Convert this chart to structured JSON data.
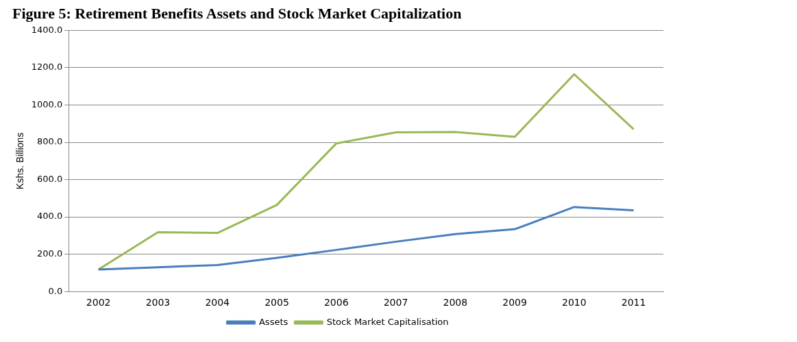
{
  "chart_data": {
    "type": "line",
    "title": "Figure 5: Retirement Benefits Assets and Stock Market Capitalization",
    "ylabel": "Kshs. Billions",
    "categories": [
      "2002",
      "2003",
      "2004",
      "2005",
      "2006",
      "2007",
      "2008",
      "2009",
      "2010",
      "2011"
    ],
    "series": [
      {
        "name": "Assets",
        "color": "#4a7ebb",
        "values": [
          118,
          130,
          142,
          180,
          223,
          267,
          308,
          334,
          453,
          435
        ]
      },
      {
        "name": "Stock Market Capitalisation",
        "color": "#98b954",
        "values": [
          118,
          318,
          314,
          464,
          794,
          853,
          855,
          829,
          1165,
          870
        ]
      }
    ],
    "ylim": [
      0,
      1400
    ],
    "yticks": [
      {
        "value": 0,
        "label": "0.0"
      },
      {
        "value": 200,
        "label": "200.0"
      },
      {
        "value": 400,
        "label": "400.0"
      },
      {
        "value": 600,
        "label": "600.0"
      },
      {
        "value": 800,
        "label": "800.0"
      },
      {
        "value": 1000,
        "label": "1000.0"
      },
      {
        "value": 1200,
        "label": "1200.0"
      },
      {
        "value": 1400,
        "label": "1400.0"
      }
    ],
    "grid": "y",
    "legend": "bottom",
    "marker": "none",
    "line_style": "solid"
  }
}
